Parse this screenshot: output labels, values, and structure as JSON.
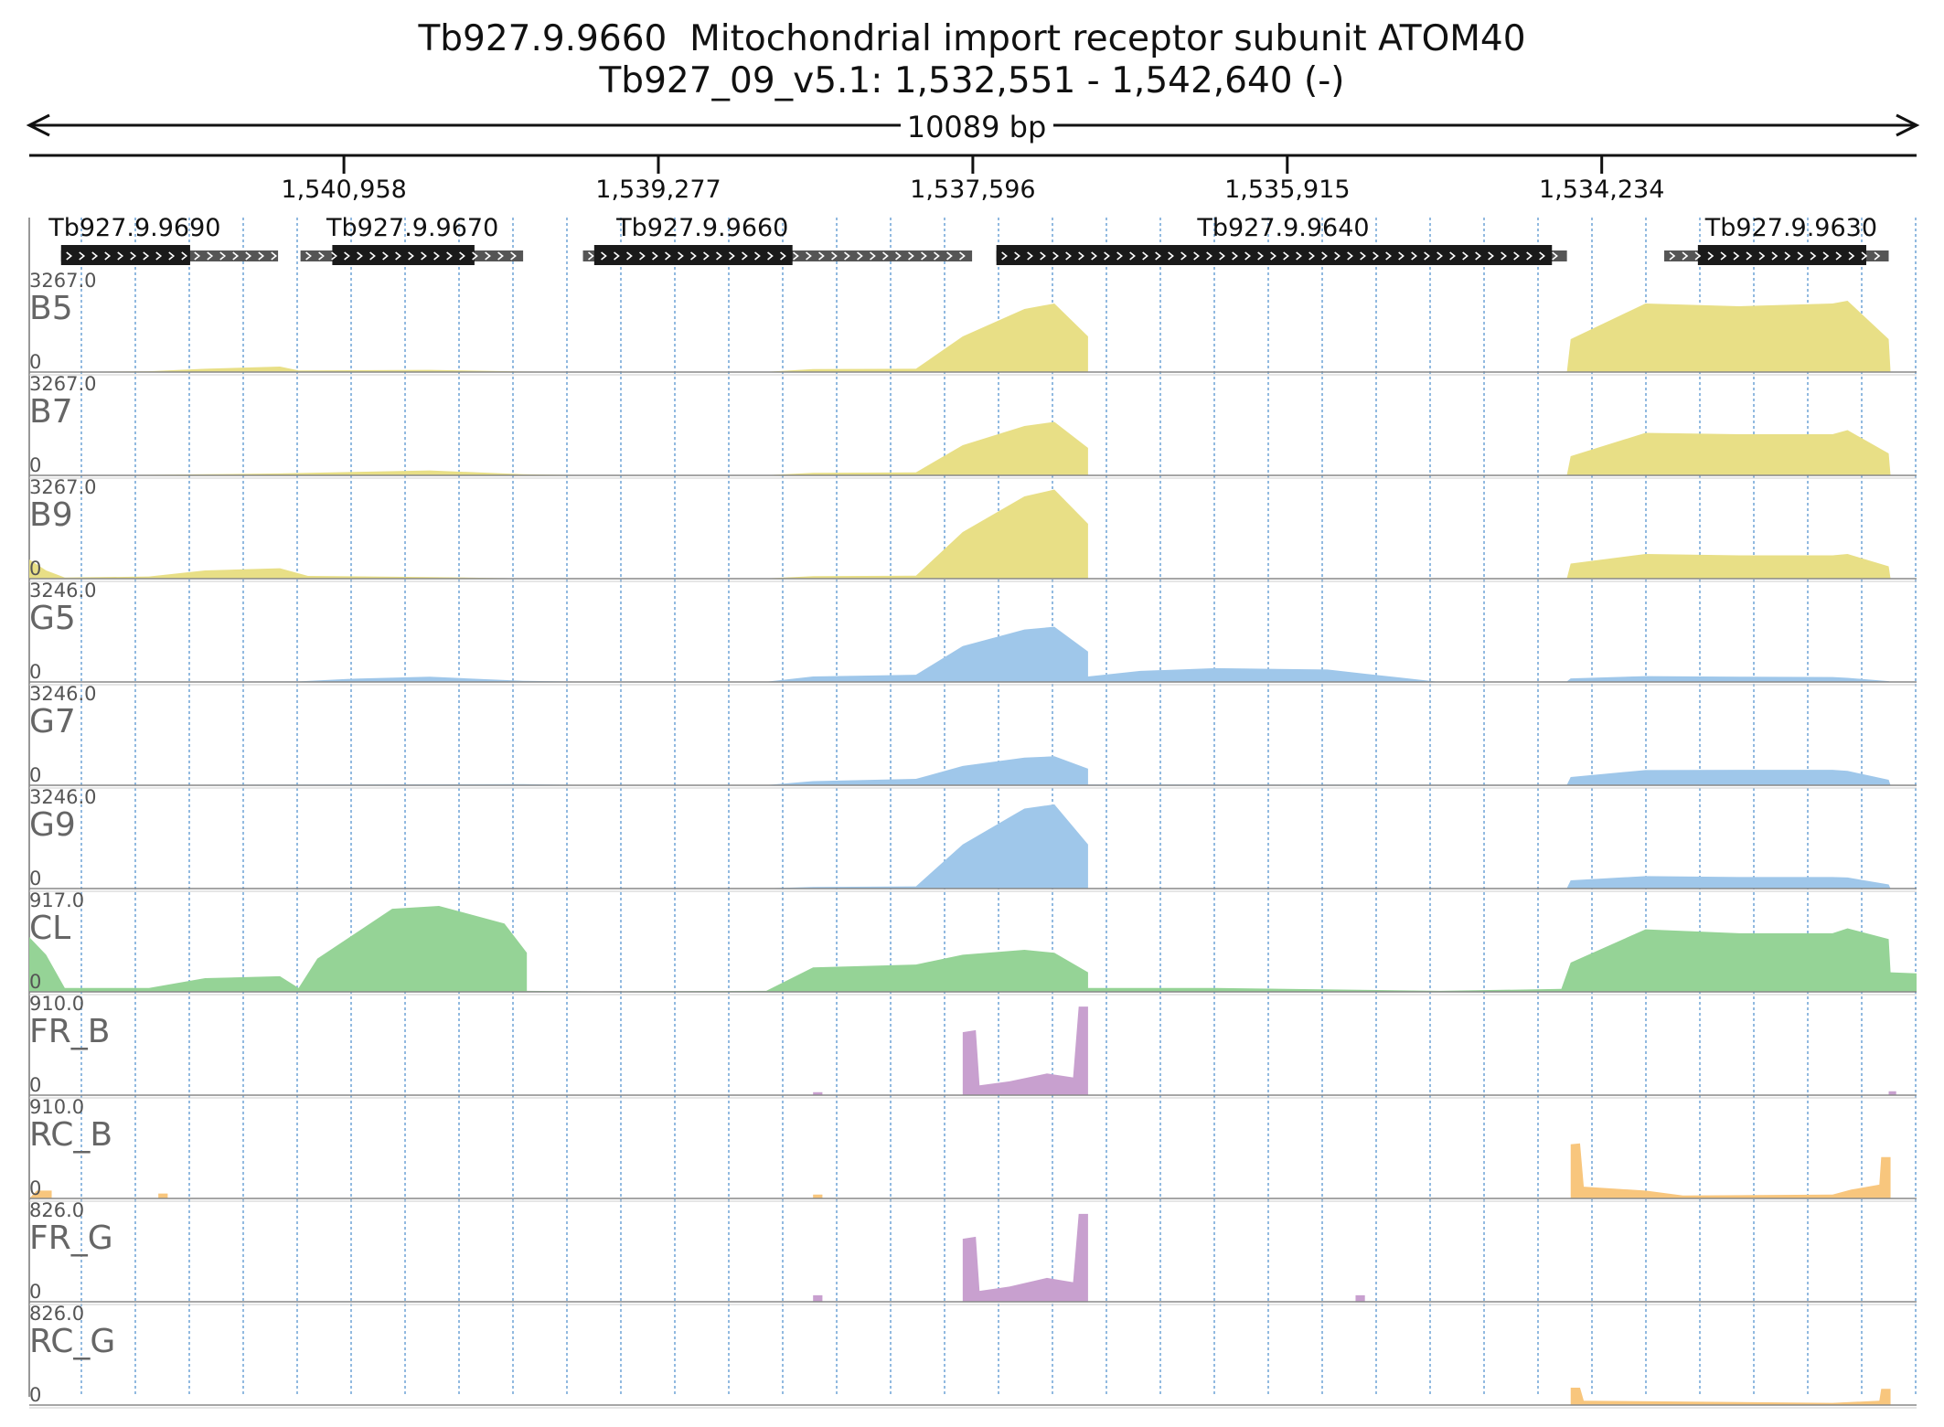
{
  "title": {
    "line1": "Tb927.9.9660  Mitochondrial import receptor subunit ATOM40",
    "line2": "Tb927_09_v5.1: 1,532,551 - 1,542,640 (-)"
  },
  "region": {
    "length_label": "10089 bp",
    "start": 1532551,
    "end": 1542640,
    "strand": "-"
  },
  "ruler": {
    "ticks": [
      {
        "pos": 1540958,
        "label": "1,540,958"
      },
      {
        "pos": 1539277,
        "label": "1,539,277"
      },
      {
        "pos": 1537596,
        "label": "1,537,596"
      },
      {
        "pos": 1535915,
        "label": "1,535,915"
      },
      {
        "pos": 1534234,
        "label": "1,534,234"
      }
    ]
  },
  "genes": [
    {
      "name": "Tb927.9.9690",
      "start": 1542470,
      "end": 1541310,
      "cds_start": 1542470,
      "cds_end": 1541780
    },
    {
      "name": "Tb927.9.9670",
      "start": 1541190,
      "end": 1540000,
      "cds_start": 1541020,
      "cds_end": 1540260
    },
    {
      "name": "Tb927.9.9660",
      "start": 1539680,
      "end": 1537600,
      "cds_start": 1539620,
      "cds_end": 1538560
    },
    {
      "name": "Tb927.9.9640",
      "start": 1537470,
      "end": 1534420,
      "cds_start": 1537470,
      "cds_end": 1534500
    },
    {
      "name": "Tb927.9.9630",
      "start": 1533900,
      "end": 1532700,
      "cds_start": 1533720,
      "cds_end": 1532820
    }
  ],
  "colors": {
    "yellow": "#e8df86",
    "blue": "#9fc7ea",
    "green": "#95d396",
    "purple": "#c8a0cf",
    "orange": "#f8c67d",
    "grid": "#6fa3d6",
    "gene_box": "#1a1a1a",
    "utr_box": "#555555"
  },
  "chart_data": {
    "type": "area",
    "x_unit": "genomic coordinate (bp)",
    "x_range": [
      1542640,
      1532551
    ],
    "tracks": [
      {
        "name": "B5",
        "max_label": "3267.0",
        "min_label": "0",
        "max": 3267,
        "color": "yellow",
        "points": [
          [
            1542640,
            0
          ],
          [
            1542000,
            30
          ],
          [
            1541700,
            120
          ],
          [
            1541300,
            200
          ],
          [
            1541200,
            60
          ],
          [
            1540500,
            80
          ],
          [
            1540000,
            20
          ],
          [
            1539600,
            5
          ],
          [
            1538700,
            10
          ],
          [
            1538450,
            110
          ],
          [
            1537900,
            120
          ],
          [
            1537650,
            1300
          ],
          [
            1537320,
            2300
          ],
          [
            1537160,
            2500
          ],
          [
            1536980,
            1300
          ],
          [
            1536980,
            0
          ],
          [
            1535100,
            0
          ],
          [
            1534420,
            20
          ],
          [
            1534400,
            1200
          ],
          [
            1534000,
            2500
          ],
          [
            1533500,
            2400
          ],
          [
            1533000,
            2500
          ],
          [
            1532920,
            2600
          ],
          [
            1532700,
            1200
          ],
          [
            1532690,
            0
          ],
          [
            1532551,
            0
          ]
        ]
      },
      {
        "name": "B7",
        "max_label": "3267.0",
        "min_label": "0",
        "max": 3267,
        "color": "yellow",
        "points": [
          [
            1542640,
            0
          ],
          [
            1542000,
            20
          ],
          [
            1541700,
            40
          ],
          [
            1541300,
            70
          ],
          [
            1540500,
            180
          ],
          [
            1540000,
            40
          ],
          [
            1539600,
            5
          ],
          [
            1538700,
            10
          ],
          [
            1538450,
            90
          ],
          [
            1537900,
            110
          ],
          [
            1537650,
            1100
          ],
          [
            1537320,
            1800
          ],
          [
            1537160,
            1950
          ],
          [
            1536980,
            1000
          ],
          [
            1536980,
            0
          ],
          [
            1535100,
            0
          ],
          [
            1534420,
            20
          ],
          [
            1534400,
            700
          ],
          [
            1534000,
            1550
          ],
          [
            1533500,
            1500
          ],
          [
            1533000,
            1500
          ],
          [
            1532920,
            1650
          ],
          [
            1532700,
            800
          ],
          [
            1532690,
            0
          ],
          [
            1532551,
            0
          ]
        ]
      },
      {
        "name": "B9",
        "max_label": "3267.0",
        "min_label": "0",
        "max": 3267,
        "color": "yellow",
        "points": [
          [
            1542640,
            700
          ],
          [
            1542550,
            300
          ],
          [
            1542450,
            40
          ],
          [
            1542000,
            80
          ],
          [
            1541700,
            300
          ],
          [
            1541300,
            380
          ],
          [
            1541150,
            100
          ],
          [
            1540500,
            60
          ],
          [
            1540000,
            10
          ],
          [
            1539600,
            5
          ],
          [
            1538700,
            10
          ],
          [
            1538450,
            90
          ],
          [
            1537900,
            110
          ],
          [
            1537650,
            1700
          ],
          [
            1537320,
            3000
          ],
          [
            1537160,
            3250
          ],
          [
            1536980,
            2000
          ],
          [
            1536980,
            0
          ],
          [
            1535100,
            0
          ],
          [
            1534420,
            20
          ],
          [
            1534400,
            550
          ],
          [
            1534000,
            900
          ],
          [
            1533500,
            850
          ],
          [
            1533000,
            850
          ],
          [
            1532920,
            900
          ],
          [
            1532700,
            450
          ],
          [
            1532690,
            0
          ],
          [
            1532551,
            0
          ]
        ]
      },
      {
        "name": "G5",
        "max_label": "3246.0",
        "min_label": "0",
        "max": 3246,
        "color": "blue",
        "points": [
          [
            1542640,
            0
          ],
          [
            1541200,
            20
          ],
          [
            1540900,
            120
          ],
          [
            1540500,
            190
          ],
          [
            1540000,
            40
          ],
          [
            1539600,
            5
          ],
          [
            1538700,
            10
          ],
          [
            1538450,
            200
          ],
          [
            1537900,
            260
          ],
          [
            1537650,
            1300
          ],
          [
            1537320,
            1900
          ],
          [
            1537160,
            2000
          ],
          [
            1536980,
            1100
          ],
          [
            1536980,
            200
          ],
          [
            1536700,
            400
          ],
          [
            1536300,
            500
          ],
          [
            1535700,
            450
          ],
          [
            1535500,
            300
          ],
          [
            1535100,
            0
          ],
          [
            1534420,
            20
          ],
          [
            1534400,
            130
          ],
          [
            1534000,
            210
          ],
          [
            1533500,
            190
          ],
          [
            1533000,
            180
          ],
          [
            1532920,
            150
          ],
          [
            1532700,
            30
          ],
          [
            1532690,
            0
          ],
          [
            1532551,
            0
          ]
        ]
      },
      {
        "name": "G7",
        "max_label": "3246.0",
        "min_label": "0",
        "max": 3246,
        "color": "blue",
        "points": [
          [
            1542640,
            0
          ],
          [
            1541000,
            30
          ],
          [
            1540000,
            40
          ],
          [
            1539600,
            5
          ],
          [
            1538700,
            10
          ],
          [
            1538450,
            150
          ],
          [
            1537900,
            230
          ],
          [
            1537650,
            700
          ],
          [
            1537320,
            1000
          ],
          [
            1537160,
            1050
          ],
          [
            1536980,
            600
          ],
          [
            1536980,
            30
          ],
          [
            1535100,
            20
          ],
          [
            1534420,
            20
          ],
          [
            1534400,
            300
          ],
          [
            1534000,
            550
          ],
          [
            1533500,
            560
          ],
          [
            1533000,
            560
          ],
          [
            1532920,
            520
          ],
          [
            1532700,
            200
          ],
          [
            1532690,
            0
          ],
          [
            1532551,
            0
          ]
        ]
      },
      {
        "name": "G9",
        "max_label": "3246.0",
        "min_label": "0",
        "max": 3246,
        "color": "blue",
        "points": [
          [
            1542640,
            0
          ],
          [
            1541000,
            20
          ],
          [
            1540000,
            20
          ],
          [
            1539600,
            5
          ],
          [
            1538700,
            10
          ],
          [
            1538450,
            60
          ],
          [
            1537900,
            80
          ],
          [
            1537650,
            1600
          ],
          [
            1537320,
            2900
          ],
          [
            1537160,
            3050
          ],
          [
            1536980,
            1600
          ],
          [
            1536980,
            0
          ],
          [
            1535100,
            0
          ],
          [
            1534420,
            20
          ],
          [
            1534400,
            300
          ],
          [
            1534000,
            450
          ],
          [
            1533500,
            420
          ],
          [
            1533000,
            420
          ],
          [
            1532920,
            400
          ],
          [
            1532700,
            150
          ],
          [
            1532690,
            0
          ],
          [
            1532551,
            0
          ]
        ]
      },
      {
        "name": "CL",
        "max_label": "917.0",
        "min_label": "0",
        "max": 917,
        "color": "green",
        "points": [
          [
            1542640,
            560
          ],
          [
            1542550,
            380
          ],
          [
            1542450,
            40
          ],
          [
            1542000,
            40
          ],
          [
            1541700,
            140
          ],
          [
            1541300,
            160
          ],
          [
            1541200,
            40
          ],
          [
            1541100,
            340
          ],
          [
            1540700,
            850
          ],
          [
            1540450,
            880
          ],
          [
            1540100,
            700
          ],
          [
            1539980,
            400
          ],
          [
            1539980,
            10
          ],
          [
            1539600,
            5
          ],
          [
            1538700,
            10
          ],
          [
            1538450,
            250
          ],
          [
            1537900,
            280
          ],
          [
            1537650,
            380
          ],
          [
            1537320,
            430
          ],
          [
            1537160,
            400
          ],
          [
            1536980,
            200
          ],
          [
            1536980,
            40
          ],
          [
            1536300,
            40
          ],
          [
            1535100,
            10
          ],
          [
            1534450,
            30
          ],
          [
            1534400,
            300
          ],
          [
            1534000,
            640
          ],
          [
            1533500,
            600
          ],
          [
            1533000,
            600
          ],
          [
            1532920,
            650
          ],
          [
            1532700,
            540
          ],
          [
            1532690,
            200
          ],
          [
            1532300,
            190
          ],
          [
            1532100,
            160
          ],
          [
            1532000,
            120
          ],
          [
            1531950,
            80
          ],
          [
            1531900,
            20
          ],
          [
            1531700,
            0
          ]
        ]
      },
      {
        "name": "FR_B",
        "max_label": "910.0",
        "min_label": "0",
        "max": 910,
        "color": "purple",
        "points": [
          [
            1542640,
            0
          ],
          [
            1538450,
            0
          ],
          [
            1538450,
            30
          ],
          [
            1538400,
            30
          ],
          [
            1538400,
            0
          ],
          [
            1537650,
            0
          ],
          [
            1537650,
            640
          ],
          [
            1537580,
            660
          ],
          [
            1537560,
            100
          ],
          [
            1537400,
            140
          ],
          [
            1537200,
            220
          ],
          [
            1537060,
            180
          ],
          [
            1537030,
            900
          ],
          [
            1536980,
            900
          ],
          [
            1536980,
            0
          ],
          [
            1532700,
            0
          ],
          [
            1532700,
            40
          ],
          [
            1532660,
            40
          ],
          [
            1532660,
            0
          ],
          [
            1532551,
            0
          ]
        ]
      },
      {
        "name": "RC_B",
        "max_label": "910.0",
        "min_label": "0",
        "max": 910,
        "color": "orange",
        "points": [
          [
            1542640,
            0
          ],
          [
            1542600,
            80
          ],
          [
            1542520,
            80
          ],
          [
            1542520,
            0
          ],
          [
            1541950,
            0
          ],
          [
            1541950,
            50
          ],
          [
            1541900,
            50
          ],
          [
            1541900,
            0
          ],
          [
            1538450,
            0
          ],
          [
            1538450,
            40
          ],
          [
            1538400,
            40
          ],
          [
            1538400,
            0
          ],
          [
            1534400,
            0
          ],
          [
            1534400,
            550
          ],
          [
            1534350,
            560
          ],
          [
            1534330,
            120
          ],
          [
            1534000,
            80
          ],
          [
            1533800,
            30
          ],
          [
            1533000,
            40
          ],
          [
            1532900,
            90
          ],
          [
            1532750,
            140
          ],
          [
            1532740,
            420
          ],
          [
            1532690,
            420
          ],
          [
            1532690,
            0
          ],
          [
            1532551,
            0
          ]
        ]
      },
      {
        "name": "FR_G",
        "max_label": "826.0",
        "min_label": "0",
        "max": 826,
        "color": "purple",
        "points": [
          [
            1542640,
            0
          ],
          [
            1538450,
            0
          ],
          [
            1538450,
            60
          ],
          [
            1538400,
            60
          ],
          [
            1538400,
            0
          ],
          [
            1537650,
            0
          ],
          [
            1537650,
            580
          ],
          [
            1537580,
            600
          ],
          [
            1537560,
            100
          ],
          [
            1537400,
            140
          ],
          [
            1537200,
            220
          ],
          [
            1537060,
            180
          ],
          [
            1537030,
            810
          ],
          [
            1536980,
            810
          ],
          [
            1536980,
            0
          ],
          [
            1535550,
            0
          ],
          [
            1535550,
            60
          ],
          [
            1535500,
            60
          ],
          [
            1535500,
            0
          ],
          [
            1532551,
            0
          ]
        ]
      },
      {
        "name": "RC_G",
        "max_label": "826.0",
        "min_label": "0",
        "max": 826,
        "color": "orange",
        "points": [
          [
            1542640,
            0
          ],
          [
            1534400,
            0
          ],
          [
            1534400,
            160
          ],
          [
            1534350,
            160
          ],
          [
            1534330,
            40
          ],
          [
            1533000,
            20
          ],
          [
            1532750,
            40
          ],
          [
            1532740,
            150
          ],
          [
            1532690,
            150
          ],
          [
            1532690,
            0
          ],
          [
            1532551,
            0
          ]
        ]
      }
    ]
  }
}
